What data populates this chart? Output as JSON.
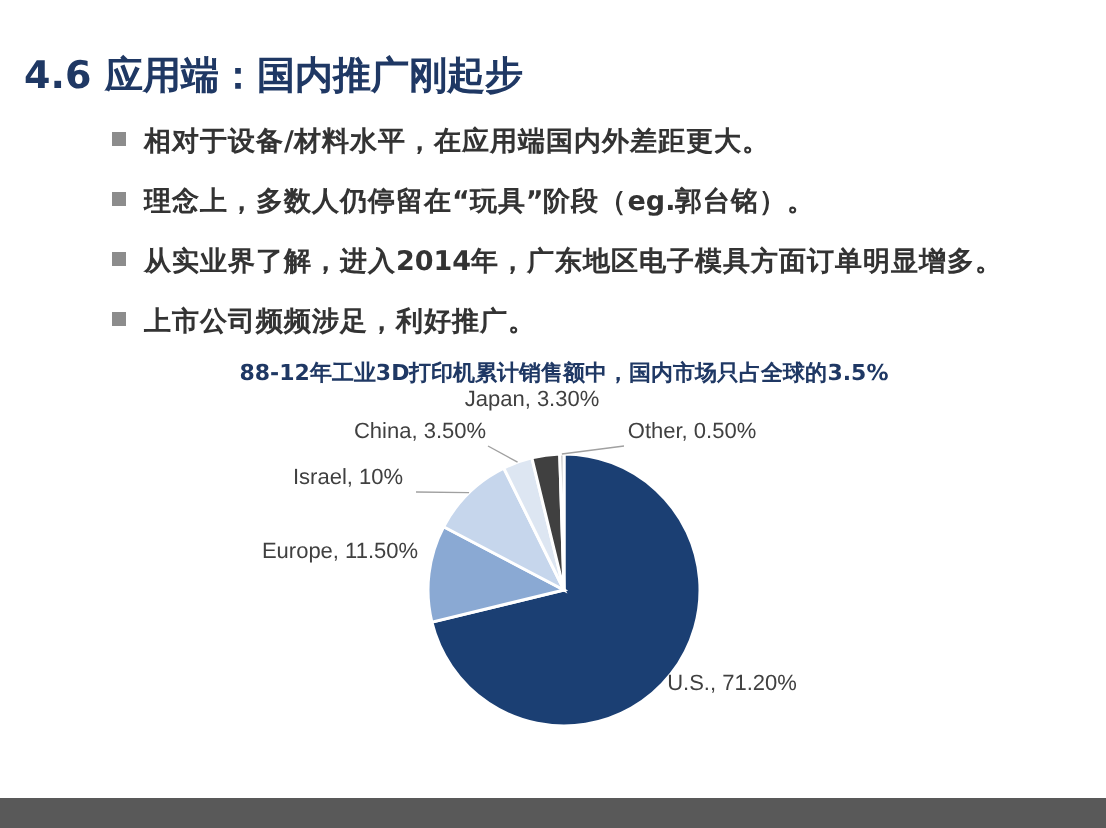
{
  "chart_data": {
    "type": "pie",
    "title": "4.6 应用端：国内推广刚起步",
    "subtitle": "88-12年工业3D打印机累计销售额中，国内市场只占全球的3.5%",
    "annotations": [
      "相对于设备/材料水平，在应用端国内外差距更大。",
      "理念上，多数人仍停留在“玩具”阶段（eg.郭台铭）。",
      "从实业界了解，进入2014年，广东地区电子模具方面订单明显增多。",
      "上市公司频频涉足，利好推广。"
    ],
    "categories": [
      "U.S.",
      "Europe",
      "Israel",
      "China",
      "Japan",
      "Other"
    ],
    "values": [
      71.2,
      11.5,
      10,
      3.5,
      3.3,
      0.5
    ],
    "value_labels": [
      "71.20%",
      "11.50%",
      "10%",
      "3.50%",
      "3.30%",
      "0.50%"
    ],
    "colors": [
      "#1b3f73",
      "#8aa9d3",
      "#c6d6ec",
      "#dde6f2",
      "#404040",
      "#bfbfbf"
    ]
  }
}
